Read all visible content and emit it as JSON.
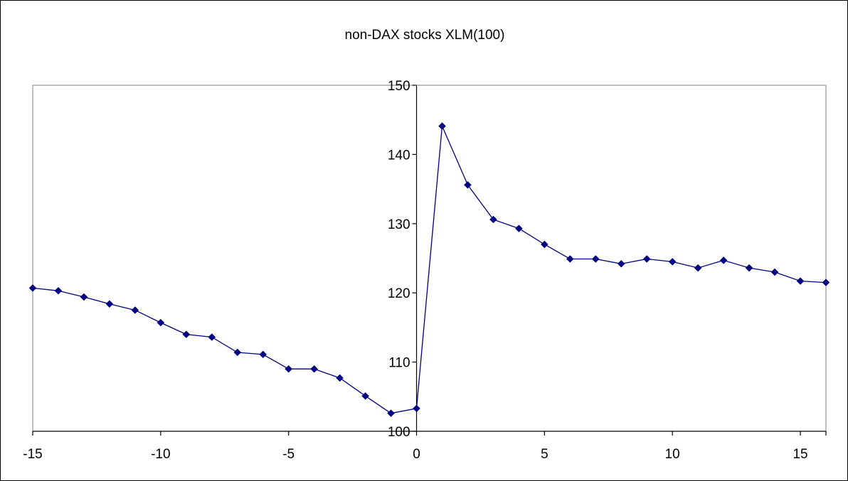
{
  "chart_data": {
    "type": "line",
    "title": "non-DAX stocks XLM(100)",
    "xlabel": "",
    "ylabel": "",
    "xlim": [
      -15,
      16
    ],
    "ylim": [
      100,
      150
    ],
    "x_ticks": [
      -15,
      -10,
      -5,
      0,
      5,
      10,
      15
    ],
    "y_ticks": [
      100,
      110,
      120,
      130,
      140,
      150
    ],
    "grid": false,
    "legend": "none",
    "colors": {
      "series": "#000080",
      "plot_border": "#808080",
      "axis": "#000000"
    },
    "series": [
      {
        "x": [
          -15,
          -14,
          -13,
          -12,
          -11,
          -10,
          -9,
          -8,
          -7,
          -6,
          -5,
          -4,
          -3,
          -2,
          -1,
          0,
          1,
          2,
          3,
          4,
          5,
          6,
          7,
          8,
          9,
          10,
          11,
          12,
          13,
          14,
          15,
          16
        ],
        "values": [
          120.7,
          120.3,
          119.4,
          118.4,
          117.5,
          115.7,
          114.0,
          113.6,
          111.4,
          111.1,
          109.0,
          109.0,
          107.7,
          105.1,
          102.6,
          103.3,
          144.1,
          135.6,
          130.6,
          129.3,
          127.0,
          124.9,
          124.9,
          124.2,
          124.9,
          124.5,
          123.6,
          124.7,
          123.6,
          123.0,
          121.7,
          121.5
        ]
      }
    ]
  }
}
